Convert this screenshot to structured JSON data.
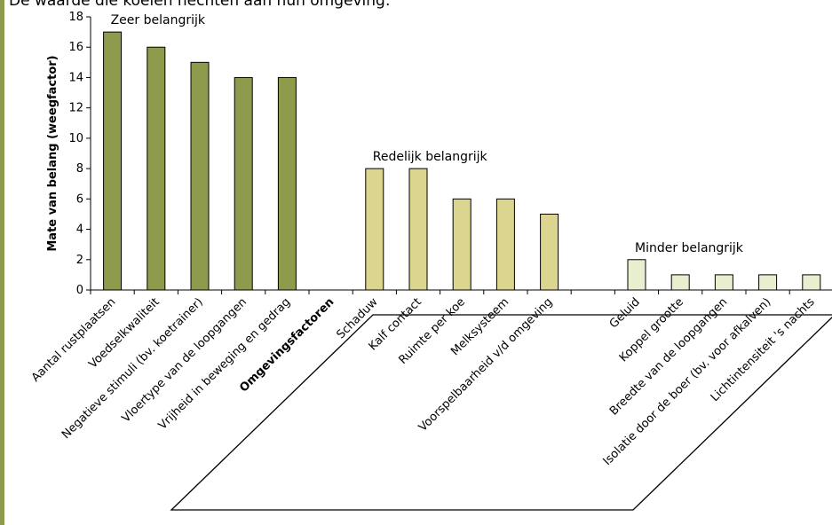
{
  "title": "De waarde die koeien hechten aan hun omgeving:",
  "colors": {
    "accent_bar": "#8e9a4c"
  },
  "chart_data": {
    "type": "bar",
    "title": "De waarde die koeien hechten aan hun omgeving:",
    "xlabel": "",
    "ylabel": "Mate van belang (weegfactor)",
    "ylim": [
      0,
      18
    ],
    "yticks": [
      0,
      2,
      4,
      6,
      8,
      10,
      12,
      14,
      16,
      18
    ],
    "grid": false,
    "categories": [
      "Aantal rustplaatsen",
      "Voedselkwaliteit",
      "Negatieve stimuli (bv. koetrainer)",
      "Vloertype van de loopgangen",
      "Vrijheid in beweging en gedrag",
      "Omgevingsfactoren",
      "Schaduw",
      "Kalf contact",
      "Ruimte per koe",
      "Melksysteem",
      "Voorspelbaarheid v/d omgeving",
      "",
      "Geluid",
      "Koppel grootte",
      "Breedte van de loopgangen",
      "Isolatie door de boer (bv. voor afkalven)",
      "Lichtintensiteit 's nachts"
    ],
    "values": [
      17,
      16,
      15,
      14,
      14,
      null,
      8,
      8,
      6,
      6,
      5,
      null,
      2,
      1,
      1,
      1,
      1
    ],
    "groups": [
      {
        "name": "Zeer belangrijk",
        "start": 0,
        "end": 4,
        "color": "#8e9a4c"
      },
      {
        "name": "Redelijk belangrijk",
        "start": 6,
        "end": 10,
        "color": "#dcd590"
      },
      {
        "name": "Minder belangrijk",
        "start": 12,
        "end": 16,
        "color": "#e8efcf"
      }
    ],
    "bold_categories": [
      "Omgevingsfactoren"
    ]
  }
}
